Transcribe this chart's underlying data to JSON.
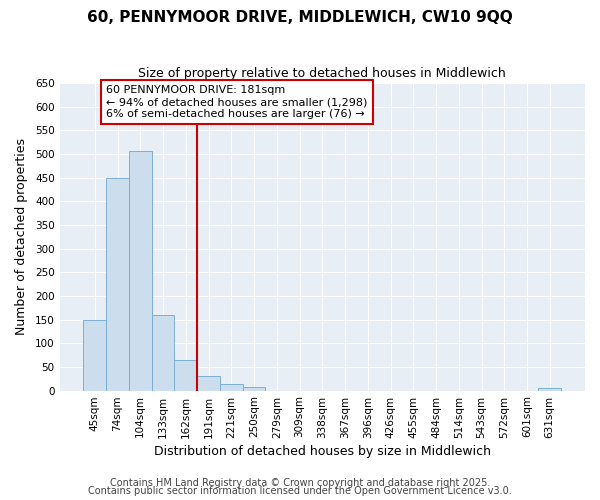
{
  "title_line1": "60, PENNYMOOR DRIVE, MIDDLEWICH, CW10 9QQ",
  "title_line2": "Size of property relative to detached houses in Middlewich",
  "xlabel": "Distribution of detached houses by size in Middlewich",
  "ylabel": "Number of detached properties",
  "categories": [
    "45sqm",
    "74sqm",
    "104sqm",
    "133sqm",
    "162sqm",
    "191sqm",
    "221sqm",
    "250sqm",
    "279sqm",
    "309sqm",
    "338sqm",
    "367sqm",
    "396sqm",
    "426sqm",
    "455sqm",
    "484sqm",
    "514sqm",
    "543sqm",
    "572sqm",
    "601sqm",
    "631sqm"
  ],
  "values": [
    150,
    450,
    507,
    160,
    65,
    30,
    13,
    7,
    0,
    0,
    0,
    0,
    0,
    0,
    0,
    0,
    0,
    0,
    0,
    0,
    5
  ],
  "bar_color": "#ccdded",
  "bar_edge_color": "#7ab0d4",
  "vline_x": 4.5,
  "vline_color": "#cc0000",
  "annotation_text": "60 PENNYMOOR DRIVE: 181sqm\n← 94% of detached houses are smaller (1,298)\n6% of semi-detached houses are larger (76) →",
  "annotation_box_color": "#cc0000",
  "ylim": [
    0,
    650
  ],
  "yticks": [
    0,
    50,
    100,
    150,
    200,
    250,
    300,
    350,
    400,
    450,
    500,
    550,
    600,
    650
  ],
  "fig_bg_color": "#ffffff",
  "plot_bg_color": "#e8eef5",
  "grid_color": "#ffffff",
  "footer_line1": "Contains HM Land Registry data © Crown copyright and database right 2025.",
  "footer_line2": "Contains public sector information licensed under the Open Government Licence v3.0.",
  "title_fontsize": 11,
  "subtitle_fontsize": 9,
  "xlabel_fontsize": 9,
  "ylabel_fontsize": 9,
  "tick_fontsize": 7.5,
  "annotation_fontsize": 8,
  "footer_fontsize": 7
}
